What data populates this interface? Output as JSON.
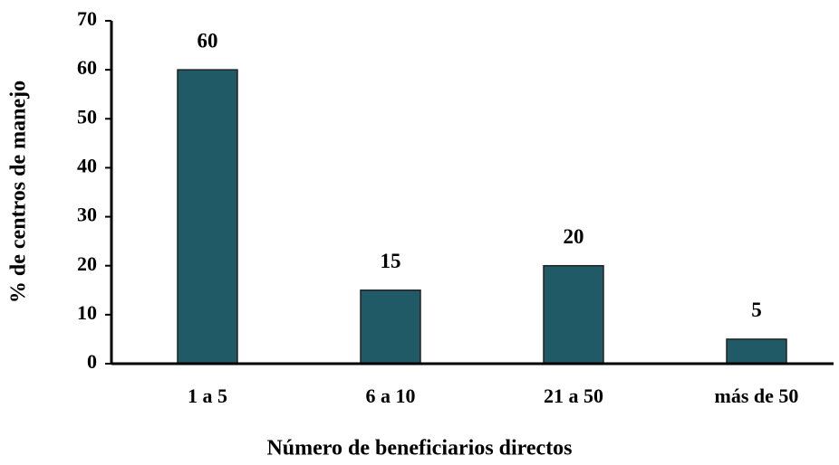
{
  "chart_data": {
    "type": "bar",
    "x_label": "Número de  beneficiarios directos",
    "y_label": "%  de  centros de manejo",
    "categories": [
      "1 a 5",
      "6 a 10",
      "21 a 50",
      "más de 50"
    ],
    "values": [
      60,
      15,
      20,
      5
    ],
    "color": "#1f5a66",
    "ylim": [
      0,
      70
    ],
    "yticks": [
      0,
      10,
      20,
      30,
      40,
      50,
      60,
      70
    ],
    "grid": false
  }
}
